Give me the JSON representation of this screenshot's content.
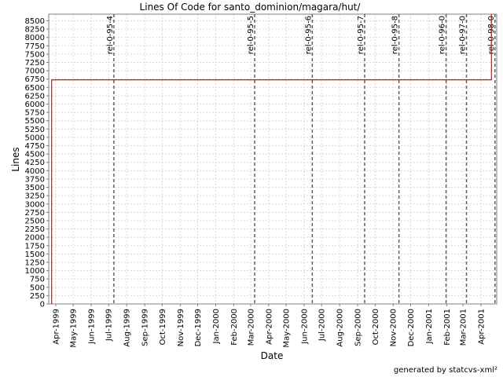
{
  "chart_data": {
    "type": "line",
    "title": "Lines Of Code for santo_dominion/magara/hut/",
    "xlabel": "Date",
    "ylabel": "Lines",
    "ylim": [
      0,
      8700
    ],
    "xlim": [
      "1999-03-20",
      "2001-04-28"
    ],
    "grid": true,
    "y_ticks": [
      0,
      250,
      500,
      750,
      1000,
      1250,
      1500,
      1750,
      2000,
      2250,
      2500,
      2750,
      3000,
      3250,
      3500,
      3750,
      4000,
      4250,
      4500,
      4750,
      5000,
      5250,
      5500,
      5750,
      6000,
      6250,
      6500,
      6750,
      7000,
      7250,
      7500,
      7750,
      8000,
      8250,
      8500
    ],
    "x_ticks": [
      {
        "label": "Apr-1999",
        "date": "1999-04-01"
      },
      {
        "label": "May-1999",
        "date": "1999-05-01"
      },
      {
        "label": "Jun-1999",
        "date": "1999-06-01"
      },
      {
        "label": "Jul-1999",
        "date": "1999-07-01"
      },
      {
        "label": "Aug-1999",
        "date": "1999-08-01"
      },
      {
        "label": "Sep-1999",
        "date": "1999-09-01"
      },
      {
        "label": "Oct-1999",
        "date": "1999-10-01"
      },
      {
        "label": "Nov-1999",
        "date": "1999-11-01"
      },
      {
        "label": "Dec-1999",
        "date": "1999-12-01"
      },
      {
        "label": "Jan-2000",
        "date": "2000-01-01"
      },
      {
        "label": "Feb-2000",
        "date": "2000-02-01"
      },
      {
        "label": "Mar-2000",
        "date": "2000-03-01"
      },
      {
        "label": "Apr-2000",
        "date": "2000-04-01"
      },
      {
        "label": "May-2000",
        "date": "2000-05-01"
      },
      {
        "label": "Jun-2000",
        "date": "2000-06-01"
      },
      {
        "label": "Jul-2000",
        "date": "2000-07-01"
      },
      {
        "label": "Aug-2000",
        "date": "2000-08-01"
      },
      {
        "label": "Sep-2000",
        "date": "2000-09-01"
      },
      {
        "label": "Oct-2000",
        "date": "2000-10-01"
      },
      {
        "label": "Nov-2000",
        "date": "2000-11-01"
      },
      {
        "label": "Dec-2000",
        "date": "2000-12-01"
      },
      {
        "label": "Jan-2001",
        "date": "2001-01-01"
      },
      {
        "label": "Feb-2001",
        "date": "2001-02-01"
      },
      {
        "label": "Mar-2001",
        "date": "2001-03-01"
      },
      {
        "label": "Apr-2001",
        "date": "2001-04-01"
      }
    ],
    "series": [
      {
        "color": "#ff0000",
        "step": true,
        "points": [
          {
            "x": "1999-03-25",
            "y": 0
          },
          {
            "x": "1999-03-25",
            "y": 6730
          },
          {
            "x": "2001-04-19",
            "y": 6730
          },
          {
            "x": "2001-04-19",
            "y": 8700
          }
        ]
      }
    ],
    "annotations": [
      {
        "label": "rel-0-95-4",
        "x": "1999-07-10"
      },
      {
        "label": "rel-0-95-5",
        "x": "2000-03-08"
      },
      {
        "label": "rel-0-95-6",
        "x": "2000-06-15"
      },
      {
        "label": "rel-0-95-7",
        "x": "2000-09-13"
      },
      {
        "label": "rel-0-95-8",
        "x": "2000-11-11"
      },
      {
        "label": "rel-0-96-0",
        "x": "2001-01-31"
      },
      {
        "label": "rel-0-97-0",
        "x": "2001-03-07"
      },
      {
        "label": "rel-0-98-0",
        "x": "2001-04-25"
      }
    ]
  },
  "footer": {
    "credit": "generated by statcvs-xml²"
  }
}
